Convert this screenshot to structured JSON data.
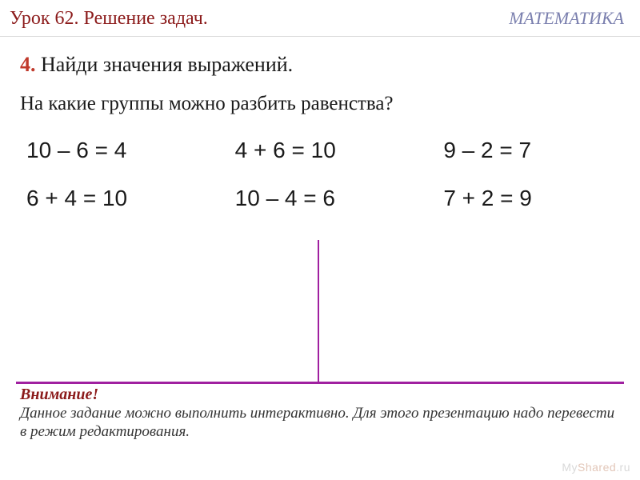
{
  "header": {
    "lesson_title": "Урок 62. Решение задач.",
    "subject": "МАТЕМАТИКА"
  },
  "task": {
    "number": "4.",
    "instruction": "Найди значения выражений.",
    "question": "На какие группы можно разбить равенства?"
  },
  "equations": {
    "grid": [
      [
        "10 – 6 = 4",
        "4 + 6 = 10",
        "9 – 2 = 7"
      ],
      [
        "6 + 4 = 10",
        "10 – 4 = 6",
        "7 + 2 = 9"
      ]
    ]
  },
  "footer": {
    "attention": "Внимание!",
    "note": "Данное задание можно выполнить интерактивно. Для этого презентацию надо перевести в режим редактирования."
  },
  "watermark": {
    "part1": "My",
    "part2": "Shared",
    "part3": ".ru"
  },
  "colors": {
    "title_color": "#8b1a1a",
    "subject_color": "#7a7fae",
    "task_number_color": "#c0392b",
    "divider_color": "#a020a0",
    "text_color": "#1a1a1a"
  }
}
